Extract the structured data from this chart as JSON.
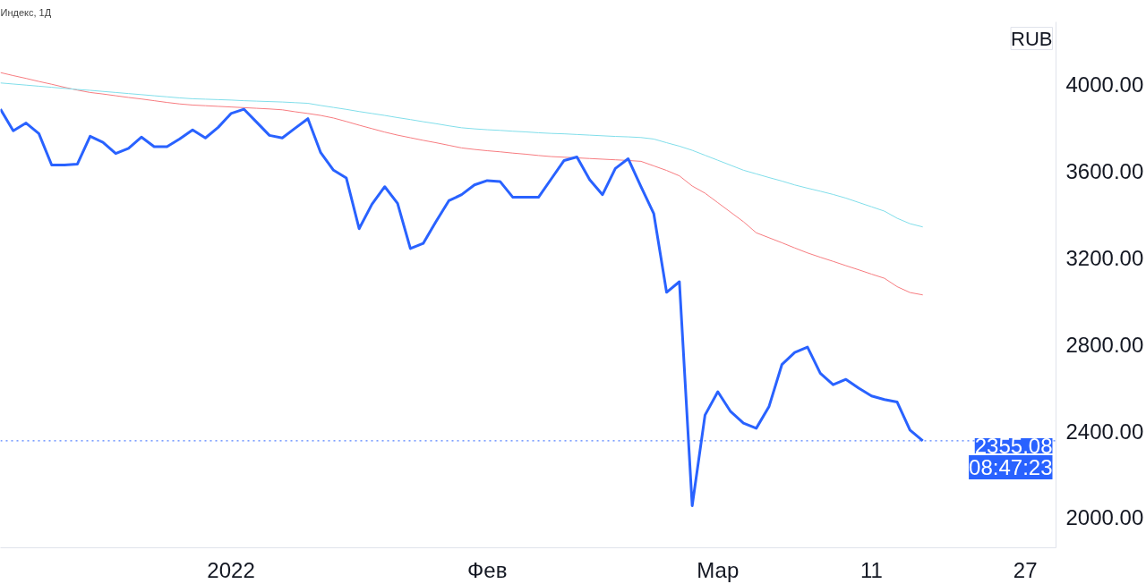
{
  "chart_data": {
    "type": "line",
    "title": "Индекс, 1Д",
    "ylabel": "RUB",
    "categories": [
      null,
      null,
      null,
      null,
      null,
      null,
      null,
      null,
      null,
      null,
      null,
      null,
      null,
      null,
      null,
      null,
      null,
      null,
      "2022",
      null,
      null,
      null,
      null,
      null,
      null,
      null,
      null,
      null,
      null,
      null,
      null,
      null,
      null,
      null,
      null,
      null,
      null,
      null,
      "Фев",
      null,
      null,
      null,
      null,
      null,
      null,
      null,
      null,
      null,
      null,
      null,
      null,
      null,
      null,
      null,
      null,
      null,
      "Мар",
      null,
      null,
      null,
      null,
      null,
      null,
      null,
      null,
      null,
      null,
      null,
      "11",
      null,
      null,
      null,
      null,
      null,
      null,
      null,
      null,
      null,
      null,
      null,
      "27"
    ],
    "ylim": [
      1861,
      4290
    ],
    "yticks": [
      {
        "value": 2000,
        "label": "2000.00"
      },
      {
        "value": 2400,
        "label": "2400.00"
      },
      {
        "value": 2800,
        "label": "2800.00"
      },
      {
        "value": 3200,
        "label": "3200.00"
      },
      {
        "value": 3600,
        "label": "3600.00"
      },
      {
        "value": 4000,
        "label": "4000.00"
      }
    ],
    "series": [
      {
        "color": "#f77c80",
        "values": [
          4056,
          4042,
          4029,
          4015,
          4002,
          3988,
          3975,
          3964,
          3957,
          3949,
          3941,
          3934,
          3926,
          3918,
          3911,
          3906,
          3903,
          3900,
          3897,
          3894,
          3891,
          3888,
          3884,
          3875,
          3867,
          3858,
          3846,
          3830,
          3813,
          3797,
          3781,
          3767,
          3755,
          3743,
          3732,
          3720,
          3708,
          3701,
          3695,
          3690,
          3684,
          3679,
          3673,
          3668,
          3665,
          3662,
          3659,
          3656,
          3653,
          3650,
          3646,
          3625,
          3604,
          3579,
          3532,
          3499,
          3455,
          3411,
          3367,
          3316,
          3293,
          3270,
          3246,
          3223,
          3203,
          3184,
          3164,
          3145,
          3125,
          3106,
          3067,
          3040,
          3029,
          null,
          null,
          null,
          null,
          null,
          null,
          null,
          null
        ]
      },
      {
        "color": "#80deea",
        "values": [
          4008,
          4003,
          3998,
          3993,
          3988,
          3983,
          3978,
          3974,
          3969,
          3964,
          3959,
          3954,
          3949,
          3944,
          3939,
          3935,
          3933,
          3931,
          3929,
          3926,
          3924,
          3922,
          3920,
          3917,
          3914,
          3904,
          3895,
          3886,
          3876,
          3867,
          3858,
          3848,
          3839,
          3829,
          3820,
          3810,
          3801,
          3796,
          3792,
          3789,
          3785,
          3782,
          3778,
          3775,
          3773,
          3770,
          3767,
          3764,
          3761,
          3759,
          3756,
          3749,
          3732,
          3716,
          3697,
          3674,
          3651,
          3628,
          3605,
          3588,
          3571,
          3555,
          3537,
          3522,
          3508,
          3493,
          3476,
          3456,
          3436,
          3416,
          3383,
          3358,
          3343,
          null,
          null,
          null,
          null,
          null,
          null,
          null,
          null
        ]
      },
      {
        "color": "#2962ff",
        "values": [
          3887,
          3787,
          3823,
          3774,
          3629,
          3629,
          3633,
          3762,
          3734,
          3682,
          3706,
          3758,
          3714,
          3714,
          3750,
          3791,
          3754,
          3803,
          3867,
          3887,
          3827,
          3766,
          3754,
          3799,
          3843,
          3686,
          3605,
          3569,
          3335,
          3448,
          3529,
          3452,
          3243,
          3267,
          3368,
          3464,
          3492,
          3537,
          3557,
          3553,
          3480,
          3480,
          3480,
          3565,
          3650,
          3666,
          3561,
          3492,
          3613,
          3658,
          3529,
          3404,
          3041,
          3090,
          2055,
          2474,
          2582,
          2490,
          2437,
          2413,
          2514,
          2707,
          2763,
          2788,
          2667,
          2614,
          2639,
          2598,
          2562,
          2546,
          2534,
          2405,
          2355.08,
          null,
          null,
          null,
          null,
          null,
          null,
          null,
          null
        ]
      }
    ],
    "ref_lines": [
      {
        "axis": "y",
        "value": 2355.08,
        "label": "2355.08",
        "color": "#2962ff",
        "line_style": "dotted"
      }
    ],
    "annotations": [
      "08:47:23"
    ]
  }
}
